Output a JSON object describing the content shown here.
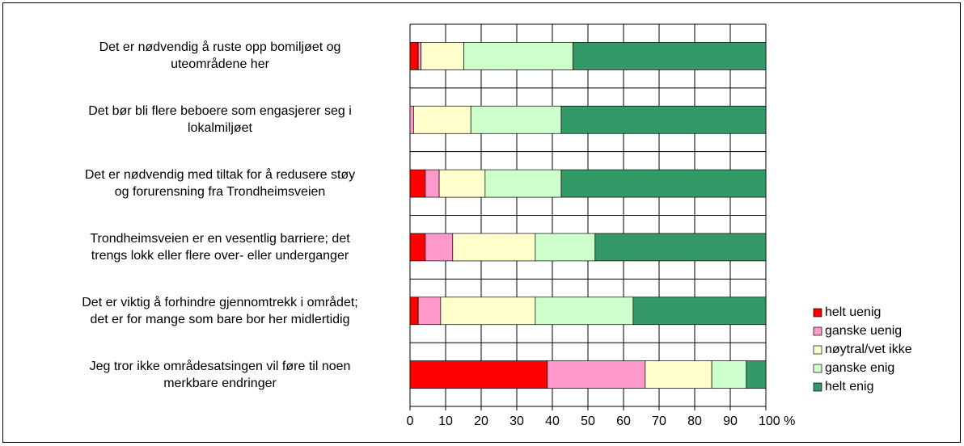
{
  "chart_data": {
    "type": "stacked-barh",
    "categories": [
      "Det er nødvendig å ruste opp bomiljøet og\nuteområdene her",
      "Det bør bli flere beboere som engasjerer seg i\nlokalmiljøet",
      "Det er nødvendig med tiltak for å redusere støy\nog forurensning fra Trondheimsveien",
      "Trondheimsveien er en vesentlig barriere; det\ntrengs lokk eller flere over- eller underganger",
      "Det er viktig å forhindre gjennomtrekk i området;\ndet er for mange som bare bor her midlertidig",
      "Jeg tror ikke områdesatsingen vil føre til noen\nmerkbare endringer"
    ],
    "series": [
      {
        "name": "helt uenig",
        "color": "#ff0000",
        "values": [
          2.3,
          0,
          4.3,
          4.3,
          2.3,
          38.6
        ]
      },
      {
        "name": "ganske uenig",
        "color": "#ff99cc",
        "values": [
          0.8,
          1,
          3.9,
          7.7,
          6.3,
          27.5
        ]
      },
      {
        "name": "nøytral/vet ikke",
        "color": "#ffffcc",
        "values": [
          12,
          16.1,
          12.9,
          23.2,
          26.6,
          18.7
        ]
      },
      {
        "name": "ganske enig",
        "color": "#ccffcc",
        "values": [
          30.7,
          25.4,
          21.4,
          16.8,
          27.5,
          9.7
        ]
      },
      {
        "name": "helt enig",
        "color": "#339966",
        "values": [
          54.2,
          57.5,
          57.5,
          48,
          37.3,
          5.5
        ]
      }
    ],
    "xlim": [
      0,
      100
    ],
    "xticks": [
      0,
      10,
      20,
      30,
      40,
      50,
      60,
      70,
      80,
      90,
      {
        "value": 100,
        "label": "100 %"
      }
    ],
    "grid": true,
    "legend": "right"
  }
}
